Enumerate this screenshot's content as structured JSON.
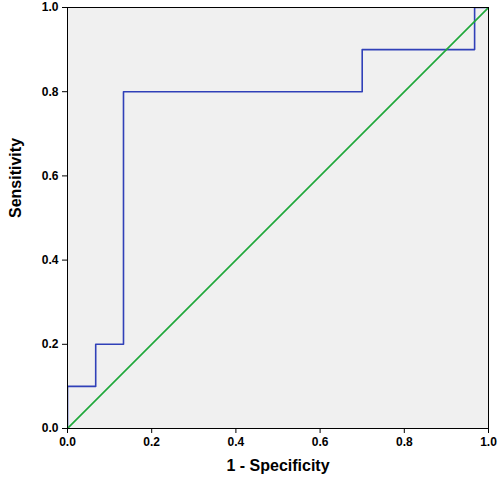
{
  "chart_data": {
    "type": "line",
    "xlabel": "1 - Specificity",
    "ylabel": "Sensitivity",
    "xlim": [
      0,
      1
    ],
    "ylim": [
      0,
      1
    ],
    "xticks": [
      {
        "value": 0,
        "label": "0.0"
      },
      0.2,
      0.4,
      0.6,
      0.8,
      {
        "value": 1,
        "label": "1.0"
      }
    ],
    "yticks": [
      {
        "value": 0,
        "label": "0.0"
      },
      0.2,
      0.4,
      0.6,
      0.8,
      {
        "value": 1,
        "label": "1.0"
      }
    ],
    "series": [
      {
        "color": "#3040b8",
        "x": [
          0,
          0,
          0.067,
          0.067,
          0.133,
          0.133,
          0.7,
          0.7,
          0.967,
          0.967,
          1
        ],
        "values": [
          0,
          0.1,
          0.1,
          0.2,
          0.2,
          0.8,
          0.8,
          0.9,
          0.9,
          1,
          1
        ]
      },
      {
        "color": "#1fa83a",
        "x": [
          0,
          1
        ],
        "values": [
          0,
          1
        ]
      }
    ]
  }
}
